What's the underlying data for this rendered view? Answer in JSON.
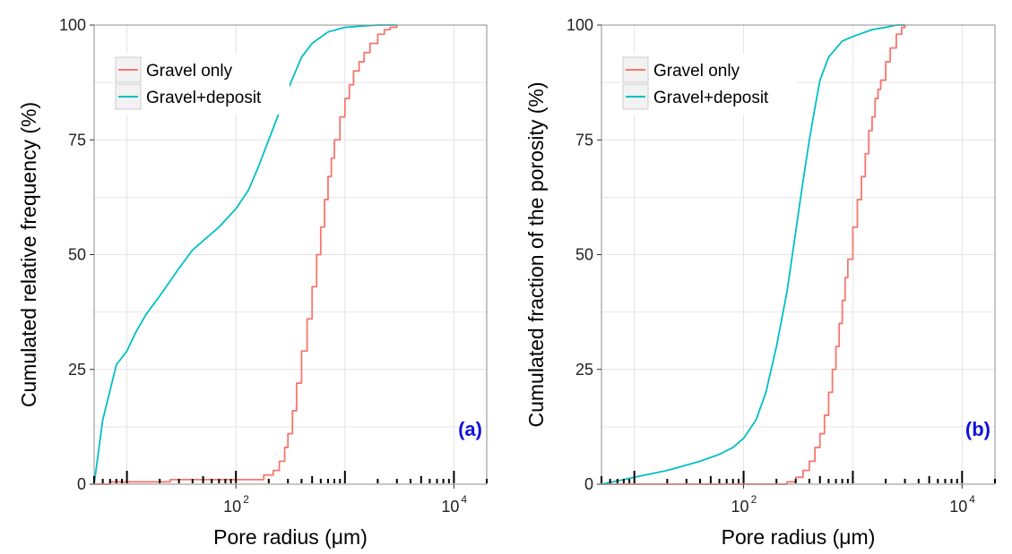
{
  "colors": {
    "gravel_only": "#F8766D",
    "gravel_deposit": "#00BFC4",
    "panel_tag": "#1010E0",
    "grid": "#E4E4E4",
    "frame": "#8C8C8C"
  },
  "chart_data": [
    {
      "type": "line",
      "panel_tag": "(a)",
      "xlabel": "Pore radius (μm)",
      "ylabel": "Cumulated relative frequency (%)",
      "xscale": "log10",
      "xlim": [
        5,
        20000
      ],
      "ylim": [
        0,
        100
      ],
      "x_ticks": [
        {
          "base": "10",
          "exp": "2",
          "value": 100
        },
        {
          "base": "10",
          "exp": "4",
          "value": 10000
        }
      ],
      "y_ticks": [
        0,
        25,
        50,
        75,
        100
      ],
      "grid": true,
      "legend_position": "top-left",
      "series": [
        {
          "name": "Gravel only",
          "color": "#F8766D",
          "step": true,
          "x": [
            5,
            7,
            10,
            20,
            25,
            40,
            150,
            180,
            220,
            250,
            280,
            300,
            330,
            360,
            400,
            450,
            500,
            550,
            600,
            650,
            700,
            750,
            800,
            900,
            1000,
            1100,
            1200,
            1350,
            1500,
            1700,
            2000,
            2300,
            2600,
            3000
          ],
          "y": [
            0,
            0.5,
            0.5,
            0.5,
            1,
            1,
            1,
            2,
            3,
            5,
            8,
            11,
            16,
            22,
            29,
            36,
            43,
            50,
            56,
            62,
            67,
            71,
            75,
            80,
            84,
            87,
            90,
            92,
            94,
            96,
            98,
            99,
            99.5,
            100
          ]
        },
        {
          "name": "Gravel+deposit",
          "color": "#00BFC4",
          "step": false,
          "x": [
            5,
            6,
            8,
            10,
            12,
            15,
            20,
            30,
            40,
            50,
            70,
            100,
            130,
            160,
            200,
            250,
            300,
            400,
            500,
            700,
            1000,
            1500,
            2000,
            3000
          ],
          "y": [
            0,
            14,
            26,
            29,
            33,
            37,
            41,
            47,
            51,
            53,
            56,
            60,
            64,
            69,
            75,
            81,
            86,
            93,
            96,
            98.5,
            99.5,
            99.8,
            100,
            100
          ]
        }
      ]
    },
    {
      "type": "line",
      "panel_tag": "(b)",
      "xlabel": "Pore radius (μm)",
      "ylabel": "Cumulated fraction of the porosity (%)",
      "xscale": "log10",
      "xlim": [
        5,
        20000
      ],
      "ylim": [
        0,
        100
      ],
      "x_ticks": [
        {
          "base": "10",
          "exp": "2",
          "value": 100
        },
        {
          "base": "10",
          "exp": "4",
          "value": 10000
        }
      ],
      "y_ticks": [
        0,
        25,
        50,
        75,
        100
      ],
      "grid": true,
      "legend_position": "top-left",
      "series": [
        {
          "name": "Gravel only",
          "color": "#F8766D",
          "step": true,
          "x": [
            5,
            100,
            200,
            250,
            300,
            350,
            400,
            450,
            500,
            550,
            600,
            650,
            700,
            750,
            800,
            850,
            900,
            1000,
            1100,
            1200,
            1300,
            1400,
            1500,
            1600,
            1700,
            1800,
            2000,
            2200,
            2500,
            2800,
            3000
          ],
          "y": [
            0,
            0,
            0,
            0.5,
            1.5,
            3,
            5,
            8,
            11,
            15,
            20,
            25,
            30,
            35,
            40,
            45,
            49,
            56,
            62,
            67,
            72,
            77,
            80,
            84,
            86,
            88,
            92,
            95,
            98,
            99.5,
            100
          ]
        },
        {
          "name": "Gravel+deposit",
          "color": "#00BFC4",
          "step": false,
          "x": [
            5,
            8,
            10,
            20,
            40,
            60,
            80,
            100,
            130,
            160,
            200,
            250,
            300,
            350,
            400,
            450,
            500,
            600,
            800,
            1000,
            1500,
            2000,
            2500,
            3000
          ],
          "y": [
            0,
            1,
            1.5,
            3,
            5,
            6.5,
            8,
            10,
            14,
            20,
            30,
            42,
            55,
            66,
            75,
            82,
            88,
            93,
            96.5,
            97.5,
            99,
            99.5,
            100,
            100
          ]
        }
      ]
    }
  ]
}
